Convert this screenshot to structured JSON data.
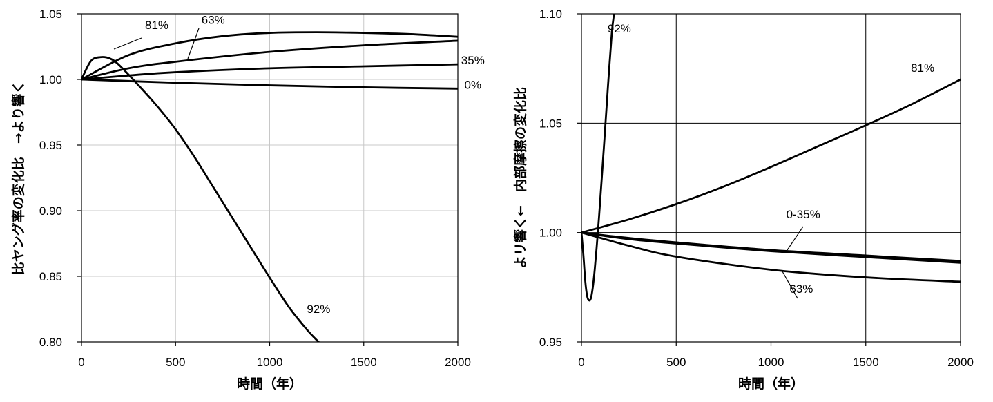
{
  "chart_data": [
    {
      "type": "line",
      "ylabel": "比ヤング率の変化比　→より響く",
      "xlabel": "時間（年）",
      "xlim": [
        0,
        2000
      ],
      "ylim": [
        0.8,
        1.05
      ],
      "xticks": [
        0,
        500,
        1000,
        1500,
        2000
      ],
      "xtick_labels": [
        "0",
        "500",
        "1000",
        "1500",
        "2000"
      ],
      "yticks": [
        0.8,
        0.85,
        0.9,
        0.95,
        1.0,
        1.05
      ],
      "ytick_labels": [
        "0.80",
        "0.85",
        "0.90",
        "0.95",
        "1.00",
        "1.05"
      ],
      "grid": "light",
      "series": [
        {
          "name": "0%",
          "x": [
            0,
            500,
            1000,
            1500,
            2000
          ],
          "y": [
            1.0,
            0.9975,
            0.9955,
            0.994,
            0.993
          ]
        },
        {
          "name": "35%",
          "x": [
            0,
            250,
            500,
            1000,
            1500,
            2000
          ],
          "y": [
            1.0,
            1.003,
            1.0055,
            1.0085,
            1.01,
            1.0115
          ]
        },
        {
          "name": "63%",
          "x": [
            0,
            250,
            500,
            1000,
            1500,
            2000
          ],
          "y": [
            1.0,
            1.0085,
            1.0135,
            1.021,
            1.026,
            1.0295
          ]
        },
        {
          "name": "81%",
          "x": [
            0,
            250,
            500,
            750,
            1000,
            1250,
            1500,
            1750,
            2000
          ],
          "y": [
            1.0,
            1.0185,
            1.0275,
            1.033,
            1.0355,
            1.036,
            1.0355,
            1.0345,
            1.0325
          ]
        },
        {
          "name": "92%",
          "x": [
            0,
            50,
            100,
            150,
            200,
            300,
            400,
            500,
            600,
            700,
            800,
            900,
            1000,
            1100,
            1200,
            1260
          ],
          "y": [
            1.0,
            1.014,
            1.017,
            1.016,
            1.011,
            0.996,
            0.98,
            0.962,
            0.941,
            0.918,
            0.895,
            0.872,
            0.849,
            0.827,
            0.809,
            0.8
          ]
        }
      ],
      "annotations": [
        {
          "text": "81%",
          "x": 400,
          "y": 1.0385
        },
        {
          "text": "63%",
          "x": 700,
          "y": 1.0425
        },
        {
          "text": "35%",
          "x": 2080,
          "y": 1.0115
        },
        {
          "text": "0%",
          "x": 2080,
          "y": 0.993
        },
        {
          "text": "92%",
          "x": 1260,
          "y": 0.822
        }
      ]
    },
    {
      "type": "line",
      "ylabel": "よリ響く←　内部摩擦の変化比",
      "xlabel": "時間（年）",
      "xlim": [
        0,
        2000
      ],
      "ylim": [
        0.95,
        1.1
      ],
      "xticks": [
        0,
        500,
        1000,
        1500,
        2000
      ],
      "xtick_labels": [
        "0",
        "500",
        "1000",
        "1500",
        "2000"
      ],
      "yticks": [
        0.95,
        1.0,
        1.05,
        1.1
      ],
      "ytick_labels": [
        "0.95",
        "1.00",
        "1.05",
        "1.10"
      ],
      "grid": "dark",
      "series": [
        {
          "name": "0-35%",
          "x": [
            0,
            250,
            500,
            1000,
            1500,
            2000
          ],
          "y": [
            1.0,
            0.9975,
            0.9955,
            0.992,
            0.9895,
            0.987
          ]
        },
        {
          "name": "0-35%",
          "x": [
            0,
            250,
            500,
            1000,
            1500,
            2000
          ],
          "y": [
            1.0,
            0.997,
            0.995,
            0.9915,
            0.9888,
            0.9862
          ]
        },
        {
          "name": "63%",
          "x": [
            0,
            250,
            500,
            1000,
            1500,
            2000
          ],
          "y": [
            1.0,
            0.994,
            0.989,
            0.983,
            0.9795,
            0.9775
          ]
        },
        {
          "name": "81%",
          "x": [
            0,
            250,
            500,
            750,
            1000,
            1250,
            1500,
            1750,
            2000
          ],
          "y": [
            1.0,
            1.006,
            1.013,
            1.021,
            1.03,
            1.0395,
            1.049,
            1.059,
            1.07
          ]
        },
        {
          "name": "92%",
          "x": [
            0,
            10,
            20,
            30,
            40,
            50,
            60,
            70,
            80,
            90,
            100,
            120,
            140,
            160,
            172
          ],
          "y": [
            1.0,
            0.99,
            0.978,
            0.971,
            0.969,
            0.97,
            0.975,
            0.983,
            0.993,
            1.004,
            1.016,
            1.041,
            1.067,
            1.091,
            1.1
          ]
        }
      ],
      "annotations": [
        {
          "text": "92%",
          "x": 200,
          "y": 1.0915
        },
        {
          "text": "81%",
          "x": 1800,
          "y": 1.0735
        },
        {
          "text": "0-35%",
          "x": 1170,
          "y": 1.0065
        },
        {
          "text": "63%",
          "x": 1160,
          "y": 0.9725
        }
      ]
    }
  ]
}
